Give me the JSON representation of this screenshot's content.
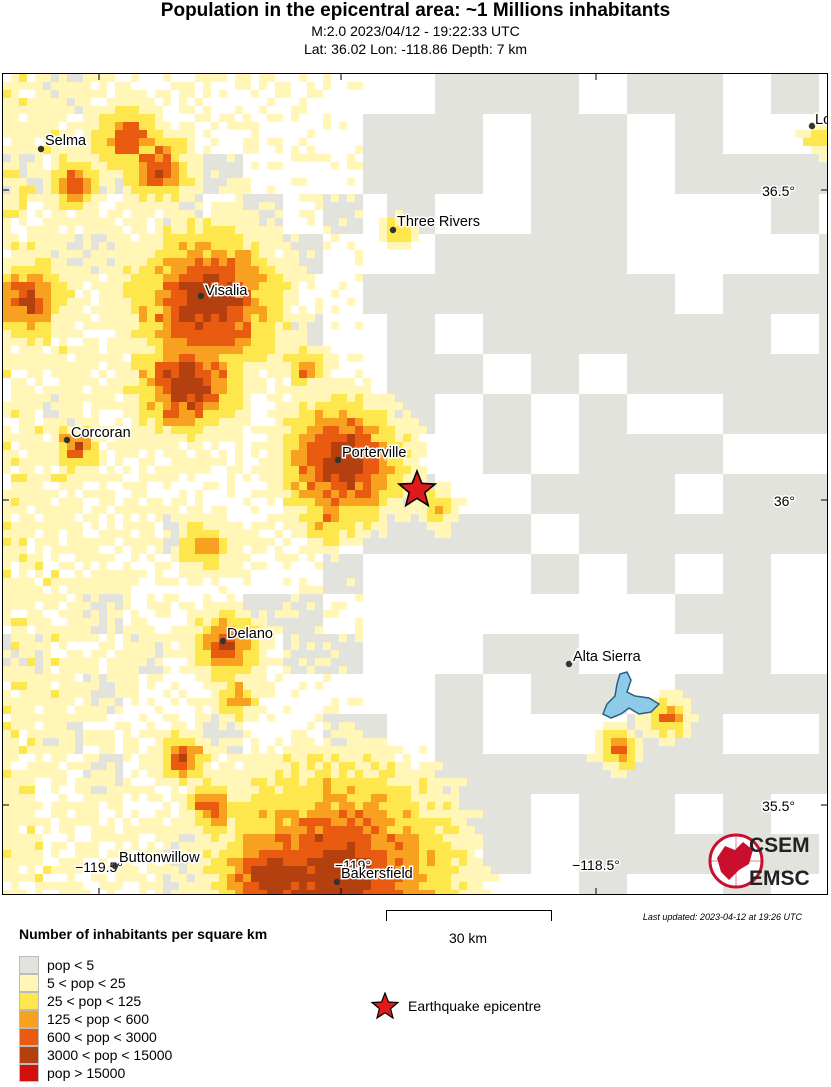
{
  "header": {
    "title": "Population in the epicentral area: ~1 Millions inhabitants",
    "line1": "M:2.0 2023/04/12 - 19:22:33 UTC",
    "line2": "Lat: 36.02 Lon: -118.86 Depth: 7 km"
  },
  "map": {
    "cities": [
      {
        "name": "Selma"
      },
      {
        "name": "Three Rivers"
      },
      {
        "name": "Visalia"
      },
      {
        "name": "Corcoran"
      },
      {
        "name": "Porterville"
      },
      {
        "name": "Delano"
      },
      {
        "name": "Alta Sierra"
      },
      {
        "name": "Buttonwillow"
      },
      {
        "name": "Bakersfield"
      },
      {
        "name": "Lo"
      }
    ],
    "lat_labels": [
      "36.5°",
      "36°",
      "35.5°"
    ],
    "lon_labels": [
      "−119.5°",
      "−119°",
      "−118.5°"
    ],
    "logo_top": "CSEM",
    "logo_bottom": "EMSC"
  },
  "footer": {
    "updated": "Last updated: 2023-04-12 at 19:26 UTC",
    "scale_label": "30 km"
  },
  "legend": {
    "title": "Number of inhabitants per square km",
    "items": [
      {
        "label": "pop < 5",
        "color": "#e3e3dd"
      },
      {
        "label": "5 < pop < 25",
        "color": "#fff6b8"
      },
      {
        "label": "25 < pop < 125",
        "color": "#fde74c"
      },
      {
        "label": "125 < pop < 600",
        "color": "#f8a020"
      },
      {
        "label": "600 < pop < 3000",
        "color": "#e95b10"
      },
      {
        "label": "3000 < pop < 15000",
        "color": "#b44010"
      },
      {
        "label": "pop > 15000",
        "color": "#d40f0f"
      }
    ],
    "epicentre_label": "Earthquake epicentre"
  },
  "colors": {
    "grey": "#e3e3dd",
    "pale": "#fff6b8",
    "yellow": "#fde74c",
    "orange": "#f8a020",
    "dark_orange": "#e95b10",
    "brown": "#b44010",
    "red": "#d40f0f",
    "lake": "#8ecbe8",
    "star": "#e0191b"
  }
}
